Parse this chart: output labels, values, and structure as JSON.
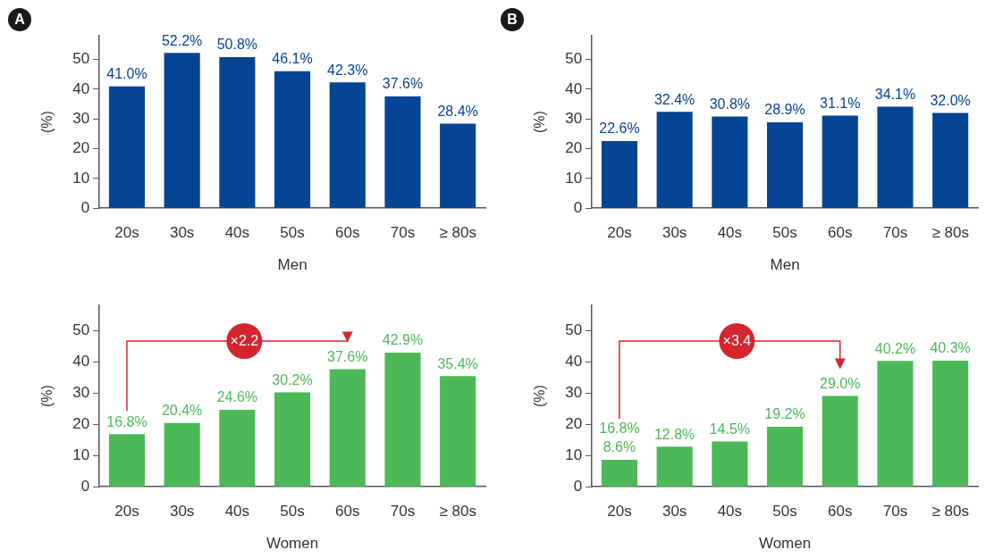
{
  "chart_data": [
    {
      "type": "bar",
      "title": "A",
      "xlabel": "Men",
      "ylabel": "(%)",
      "categories": [
        "20s",
        "30s",
        "40s",
        "50s",
        "60s",
        "70s",
        "≥ 80s"
      ],
      "ylim": [
        0,
        58
      ],
      "yticks": [
        0,
        10,
        20,
        30,
        40,
        50
      ],
      "grid": false,
      "legend": false,
      "series": [
        {
          "color": "#064494",
          "values": [
            41.0,
            52.2,
            50.8,
            46.1,
            42.3,
            37.6,
            28.4
          ],
          "value_labels": [
            "41.0%",
            "52.2%",
            "50.8%",
            "46.1%",
            "42.3%",
            "37.6%",
            "28.4%"
          ]
        }
      ]
    },
    {
      "type": "bar",
      "title": "B",
      "xlabel": "Men",
      "ylabel": "(%)",
      "categories": [
        "20s",
        "30s",
        "40s",
        "50s",
        "60s",
        "70s",
        "≥ 80s"
      ],
      "ylim": [
        0,
        58
      ],
      "yticks": [
        0,
        10,
        20,
        30,
        40,
        50
      ],
      "grid": false,
      "legend": false,
      "series": [
        {
          "color": "#064494",
          "values": [
            22.6,
            32.4,
            30.8,
            28.9,
            31.1,
            34.1,
            32.0
          ],
          "value_labels": [
            "22.6%",
            "32.4%",
            "30.8%",
            "28.9%",
            "31.1%",
            "34.1%",
            "32.0%"
          ]
        }
      ]
    },
    {
      "type": "bar",
      "xlabel": "Women",
      "ylabel": "(%)",
      "categories": [
        "20s",
        "30s",
        "40s",
        "50s",
        "60s",
        "70s",
        "≥ 80s"
      ],
      "ylim": [
        0,
        58
      ],
      "yticks": [
        0,
        10,
        20,
        30,
        40,
        50
      ],
      "grid": false,
      "legend": false,
      "series": [
        {
          "color": "#4cb857",
          "values": [
            16.8,
            20.4,
            24.6,
            30.2,
            37.6,
            42.9,
            35.4
          ],
          "value_labels": [
            "16.8%",
            "20.4%",
            "24.6%",
            "30.2%",
            "37.6%",
            "42.9%",
            "35.4%"
          ]
        }
      ],
      "annotations": [
        "×2.2"
      ]
    },
    {
      "type": "bar",
      "xlabel": "Women",
      "ylabel": "(%)",
      "categories": [
        "20s",
        "30s",
        "40s",
        "50s",
        "60s",
        "70s",
        "≥ 80s"
      ],
      "ylim": [
        0,
        58
      ],
      "yticks": [
        0,
        10,
        20,
        30,
        40,
        50
      ],
      "grid": false,
      "legend": false,
      "series": [
        {
          "color": "#4cb857",
          "values": [
            8.6,
            12.8,
            14.5,
            19.2,
            29.0,
            40.2,
            40.3
          ],
          "value_labels": [
            "8.6%",
            "12.8%",
            "14.5%",
            "19.2%",
            "29.0%",
            "40.2%",
            "40.3%"
          ]
        }
      ],
      "annotations": [
        "×3.4",
        "16.8%"
      ]
    }
  ]
}
